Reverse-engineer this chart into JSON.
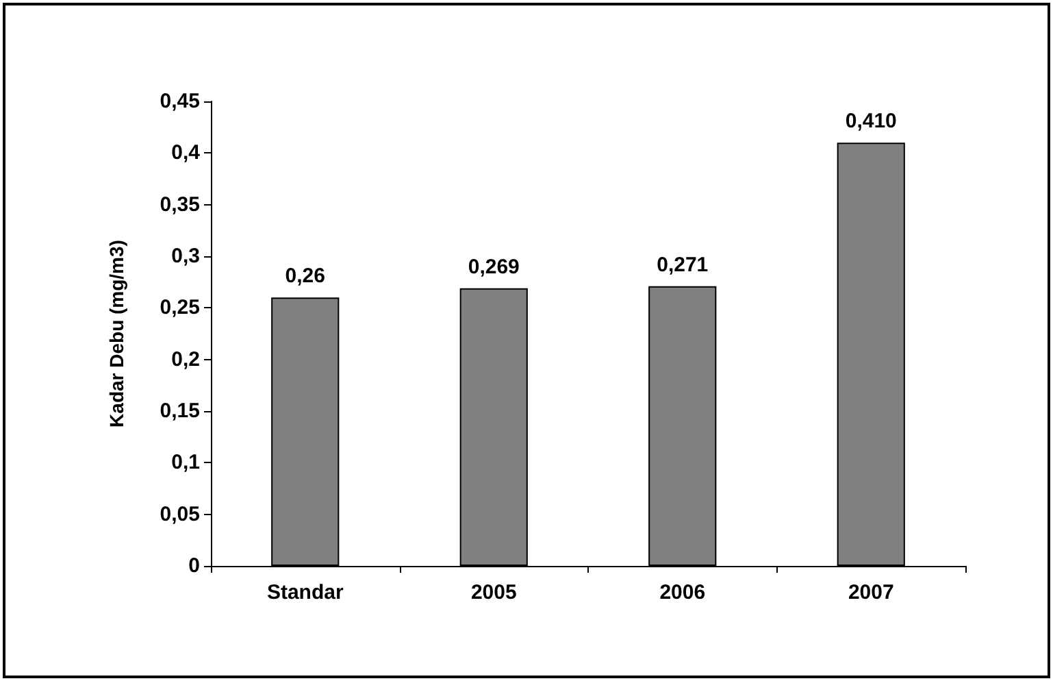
{
  "chart_data": {
    "type": "bar",
    "ylabel": "Kadar Debu (mg/m3)",
    "categories": [
      "Standar",
      "2005",
      "2006",
      "2007"
    ],
    "values": [
      0.26,
      0.269,
      0.271,
      0.41
    ],
    "value_labels": [
      "0,26",
      "0,269",
      "0,271",
      "0,410"
    ],
    "color": "#808080",
    "ylim": [
      0,
      0.45
    ],
    "yticks": [
      {
        "value": 0,
        "label": "0"
      },
      {
        "value": 0.05,
        "label": "0,05"
      },
      {
        "value": 0.1,
        "label": "0,1"
      },
      {
        "value": 0.15,
        "label": "0,15"
      },
      {
        "value": 0.2,
        "label": "0,2"
      },
      {
        "value": 0.25,
        "label": "0,25"
      },
      {
        "value": 0.3,
        "label": "0,3"
      },
      {
        "value": 0.35,
        "label": "0,35"
      },
      {
        "value": 0.4,
        "label": "0,4"
      },
      {
        "value": 0.45,
        "label": "0,45"
      }
    ],
    "grid": false
  }
}
